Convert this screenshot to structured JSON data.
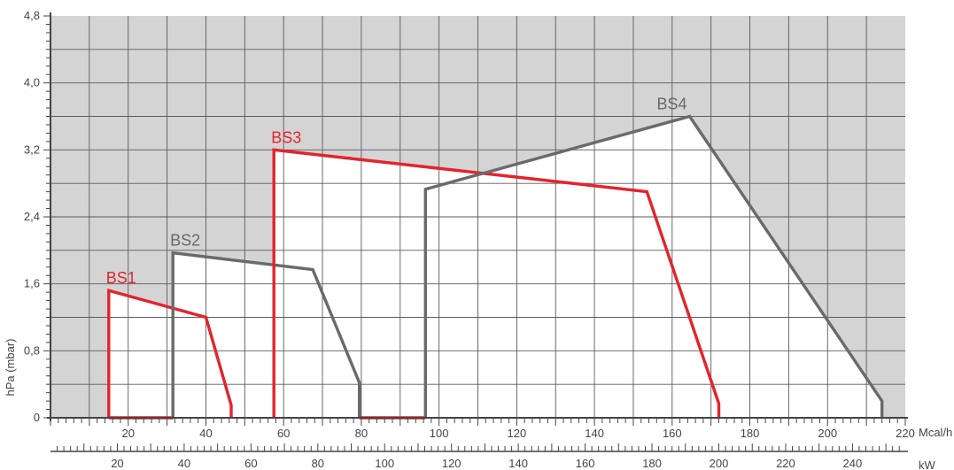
{
  "colors": {
    "background_region": "#d4d4d5",
    "work_area": "#ffffff",
    "grid": "#5a5a5a",
    "axis": "#444444",
    "red_series": "#e4232d",
    "gray_series": "#6a6a6c"
  },
  "chart_data": {
    "type": "line",
    "title": "",
    "ylabel": "hPa (mbar)",
    "xlabel_primary": "Mcal/h",
    "xlabel_secondary": "kW",
    "x_ticks": [
      "20",
      "40",
      "60",
      "80",
      "100",
      "120",
      "140",
      "160",
      "180",
      "200",
      "220"
    ],
    "y_ticks": [
      "0",
      "0,8",
      "1,6",
      "2,4",
      "3,2",
      "4,0",
      "4,8"
    ],
    "kw_ticks": [
      "20",
      "40",
      "60",
      "80",
      "100",
      "120",
      "140",
      "160",
      "180",
      "200",
      "220",
      "240"
    ],
    "xlim": [
      0,
      220
    ],
    "ylim": [
      0,
      4.8
    ],
    "kw_lim": [
      0,
      255.8
    ],
    "grid": true,
    "series": [
      {
        "name": "BS1",
        "color": "red",
        "x": [
          15,
          15,
          40,
          46.5,
          46.5
        ],
        "y": [
          0,
          1.52,
          1.2,
          0.15,
          0
        ]
      },
      {
        "name": "BS2",
        "color": "gray",
        "x": [
          31.5,
          31.5,
          67.5,
          79.5,
          79.5
        ],
        "y": [
          0,
          1.97,
          1.77,
          0.42,
          0
        ]
      },
      {
        "name": "BS3",
        "color": "red",
        "x": [
          57.5,
          57.5,
          153.5,
          172,
          172
        ],
        "y": [
          0,
          3.2,
          2.7,
          0.17,
          0
        ]
      },
      {
        "name": "BS4",
        "color": "gray",
        "x": [
          96.5,
          96.5,
          164.5,
          214,
          214
        ],
        "y": [
          0,
          2.73,
          3.6,
          0.2,
          0
        ]
      }
    ],
    "baseline_segments": [
      {
        "color": "red",
        "x": [
          15,
          31.5
        ]
      },
      {
        "color": "red",
        "x": [
          79.5,
          96.5
        ]
      }
    ]
  }
}
